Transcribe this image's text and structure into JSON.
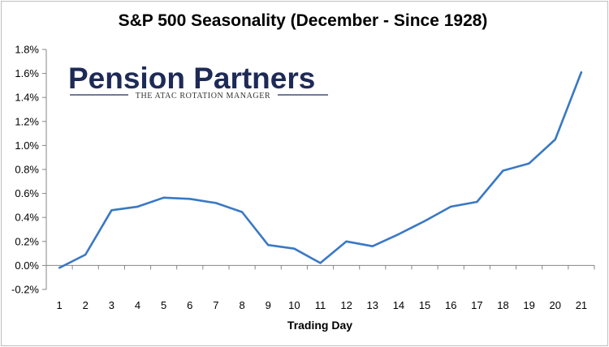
{
  "chart_data": {
    "type": "line",
    "title": "S&P 500 Seasonality (December - Since 1928)",
    "xlabel": "Trading Day",
    "ylabel": "",
    "x": [
      1,
      2,
      3,
      4,
      5,
      6,
      7,
      8,
      9,
      10,
      11,
      12,
      13,
      14,
      15,
      16,
      17,
      18,
      19,
      20,
      21
    ],
    "series": [
      {
        "values": [
          -0.02,
          0.09,
          0.46,
          0.49,
          0.565,
          0.555,
          0.52,
          0.445,
          0.17,
          0.14,
          0.02,
          0.2,
          0.16,
          0.26,
          0.37,
          0.49,
          0.53,
          0.79,
          0.85,
          1.05,
          1.61
        ]
      }
    ],
    "y_ticks": [
      "-0.2%",
      "0.0%",
      "0.2%",
      "0.4%",
      "0.6%",
      "0.8%",
      "1.0%",
      "1.2%",
      "1.4%",
      "1.6%",
      "1.8%"
    ],
    "ylim": [
      -0.2,
      1.8
    ],
    "grid": false,
    "legend": "none",
    "line_color": "#3a78c4"
  },
  "logo": {
    "name": "Pension Partners",
    "tagline": "THE ATAC ROTATION MANAGER",
    "color": "#1e2a56",
    "accent": "#8a8a8a"
  }
}
